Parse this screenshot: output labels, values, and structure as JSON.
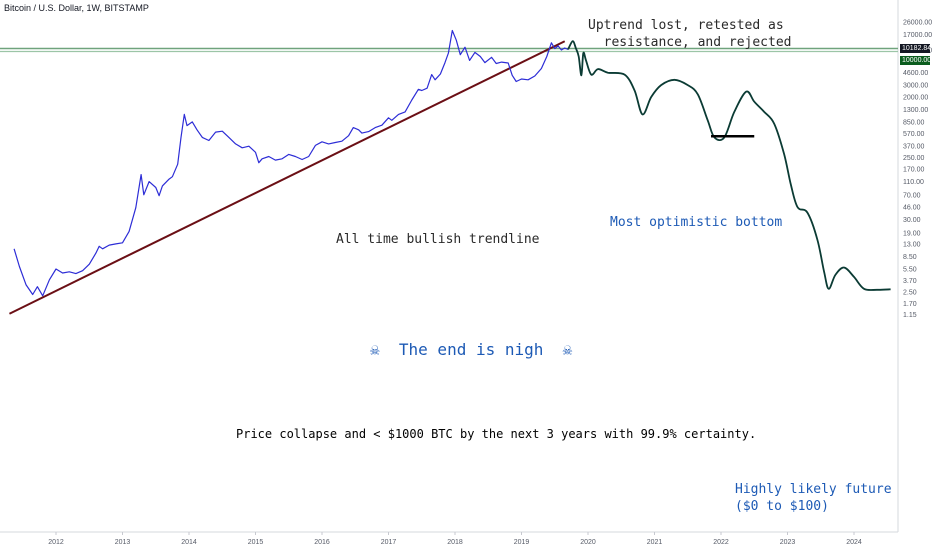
{
  "header": {
    "symbol": "Bitcoin / U.S. Dollar, 1W, BITSTAMP"
  },
  "price_tags": {
    "current": "10182.84",
    "level": "10000.00"
  },
  "annotations": {
    "uptrend_lost": "Uptrend lost, retested as\n  resistance, and rejected",
    "trendline": "All time bullish trendline",
    "optimistic_bottom": "Most optimistic bottom",
    "end_is_nigh": "☠  The end is nigh  ☠",
    "collapse": "Price collapse and < $1000 BTC by the next 3 years with 99.9% certainty.",
    "future": "Highly likely future\n($0 to $100)"
  },
  "colors": {
    "price_line": "#2d2dd6",
    "projection_line": "#0b3b34",
    "trendline": "#6b0f15",
    "resistance": "#6fa37c",
    "blue_text": "#1d5ab5",
    "dark_text": "#2a2a2a",
    "current_tag": "#131722",
    "level_tag": "#0b5d1e"
  },
  "chart_data": {
    "type": "line",
    "title": "Bitcoin / U.S. Dollar, 1W, BITSTAMP",
    "y_scale": "log",
    "ylim": [
      1,
      26000
    ],
    "xlim": [
      2011.3,
      2024.7
    ],
    "x_ticks": [
      "2012",
      "2013",
      "2014",
      "2015",
      "2016",
      "2017",
      "2018",
      "2019",
      "2020",
      "2021",
      "2022",
      "2023",
      "2024"
    ],
    "y_ticks": [
      "26000.00",
      "17000.00",
      "10000.00",
      "7000.00",
      "4600.00",
      "3000.00",
      "2000.00",
      "1300.00",
      "850.00",
      "570.00",
      "370.00",
      "250.00",
      "170.00",
      "110.00",
      "70.00",
      "46.00",
      "30.00",
      "19.00",
      "13.00",
      "8.50",
      "5.50",
      "3.70",
      "2.50",
      "1.70",
      "1.15"
    ],
    "series": [
      {
        "kind": "historical",
        "points": [
          [
            2011.37,
            11
          ],
          [
            2011.45,
            6
          ],
          [
            2011.55,
            3.2
          ],
          [
            2011.65,
            2.3
          ],
          [
            2011.72,
            3
          ],
          [
            2011.8,
            2.2
          ],
          [
            2011.9,
            3.8
          ],
          [
            2012.0,
            5.5
          ],
          [
            2012.1,
            4.8
          ],
          [
            2012.2,
            5
          ],
          [
            2012.3,
            4.7
          ],
          [
            2012.4,
            5.2
          ],
          [
            2012.5,
            6.5
          ],
          [
            2012.6,
            9.5
          ],
          [
            2012.65,
            12
          ],
          [
            2012.7,
            11
          ],
          [
            2012.8,
            12.5
          ],
          [
            2012.9,
            13
          ],
          [
            2013.0,
            13.5
          ],
          [
            2013.1,
            20
          ],
          [
            2013.2,
            45
          ],
          [
            2013.28,
            140
          ],
          [
            2013.32,
            70
          ],
          [
            2013.4,
            110
          ],
          [
            2013.5,
            90
          ],
          [
            2013.55,
            68
          ],
          [
            2013.6,
            95
          ],
          [
            2013.7,
            120
          ],
          [
            2013.75,
            130
          ],
          [
            2013.83,
            200
          ],
          [
            2013.88,
            500
          ],
          [
            2013.93,
            1100
          ],
          [
            2013.97,
            750
          ],
          [
            2014.05,
            850
          ],
          [
            2014.12,
            650
          ],
          [
            2014.2,
            500
          ],
          [
            2014.3,
            450
          ],
          [
            2014.4,
            600
          ],
          [
            2014.5,
            620
          ],
          [
            2014.6,
            500
          ],
          [
            2014.7,
            400
          ],
          [
            2014.8,
            350
          ],
          [
            2014.9,
            370
          ],
          [
            2015.0,
            300
          ],
          [
            2015.05,
            210
          ],
          [
            2015.1,
            240
          ],
          [
            2015.2,
            260
          ],
          [
            2015.3,
            230
          ],
          [
            2015.4,
            240
          ],
          [
            2015.5,
            280
          ],
          [
            2015.6,
            260
          ],
          [
            2015.7,
            235
          ],
          [
            2015.8,
            260
          ],
          [
            2015.9,
            380
          ],
          [
            2016.0,
            430
          ],
          [
            2016.1,
            400
          ],
          [
            2016.2,
            420
          ],
          [
            2016.3,
            440
          ],
          [
            2016.4,
            530
          ],
          [
            2016.47,
            700
          ],
          [
            2016.55,
            650
          ],
          [
            2016.6,
            580
          ],
          [
            2016.7,
            610
          ],
          [
            2016.8,
            700
          ],
          [
            2016.9,
            760
          ],
          [
            2017.0,
            980
          ],
          [
            2017.05,
            900
          ],
          [
            2017.15,
            1100
          ],
          [
            2017.25,
            1200
          ],
          [
            2017.35,
            1800
          ],
          [
            2017.45,
            2600
          ],
          [
            2017.5,
            2500
          ],
          [
            2017.58,
            2700
          ],
          [
            2017.65,
            4300
          ],
          [
            2017.7,
            3600
          ],
          [
            2017.78,
            4400
          ],
          [
            2017.85,
            6500
          ],
          [
            2017.9,
            9000
          ],
          [
            2017.96,
            19500
          ],
          [
            2018.02,
            14000
          ],
          [
            2018.08,
            8500
          ],
          [
            2018.15,
            11000
          ],
          [
            2018.22,
            7000
          ],
          [
            2018.3,
            9200
          ],
          [
            2018.38,
            8000
          ],
          [
            2018.45,
            6500
          ],
          [
            2018.55,
            7800
          ],
          [
            2018.62,
            6300
          ],
          [
            2018.7,
            6600
          ],
          [
            2018.8,
            6400
          ],
          [
            2018.86,
            4200
          ],
          [
            2018.92,
            3400
          ],
          [
            2019.0,
            3700
          ],
          [
            2019.1,
            3600
          ],
          [
            2019.2,
            4100
          ],
          [
            2019.3,
            5300
          ],
          [
            2019.38,
            8000
          ],
          [
            2019.45,
            12800
          ],
          [
            2019.5,
            10500
          ],
          [
            2019.55,
            11500
          ],
          [
            2019.6,
            10000
          ],
          [
            2019.65,
            10700
          ],
          [
            2019.7,
            10182
          ]
        ]
      },
      {
        "kind": "projection",
        "points": [
          [
            2019.7,
            10182
          ],
          [
            2019.77,
            13500
          ],
          [
            2019.82,
            10500
          ],
          [
            2019.86,
            8000
          ],
          [
            2019.9,
            4200
          ],
          [
            2019.93,
            9000
          ],
          [
            2019.97,
            7000
          ],
          [
            2020.05,
            4300
          ],
          [
            2020.15,
            5200
          ],
          [
            2020.3,
            4600
          ],
          [
            2020.55,
            4300
          ],
          [
            2020.7,
            2500
          ],
          [
            2020.82,
            1100
          ],
          [
            2020.95,
            2000
          ],
          [
            2021.1,
            3000
          ],
          [
            2021.3,
            3600
          ],
          [
            2021.5,
            3000
          ],
          [
            2021.65,
            2200
          ],
          [
            2021.8,
            900
          ],
          [
            2021.9,
            500
          ],
          [
            2022.05,
            500
          ],
          [
            2022.2,
            1200
          ],
          [
            2022.38,
            2400
          ],
          [
            2022.5,
            1700
          ],
          [
            2022.65,
            1200
          ],
          [
            2022.8,
            800
          ],
          [
            2022.95,
            280
          ],
          [
            2023.05,
            100
          ],
          [
            2023.15,
            46
          ],
          [
            2023.3,
            38
          ],
          [
            2023.45,
            15
          ],
          [
            2023.55,
            5
          ],
          [
            2023.62,
            2.8
          ],
          [
            2023.72,
            4.5
          ],
          [
            2023.85,
            5.8
          ],
          [
            2024.0,
            4.2
          ],
          [
            2024.15,
            2.8
          ],
          [
            2024.35,
            2.7
          ],
          [
            2024.55,
            2.75
          ]
        ]
      },
      {
        "kind": "trendline",
        "points": [
          [
            2011.3,
            1.19
          ],
          [
            2019.65,
            13500
          ]
        ]
      },
      {
        "kind": "resistance",
        "points": [
          [
            2011.3,
            10000
          ],
          [
            2024.7,
            10000
          ]
        ]
      },
      {
        "kind": "bottom_marker",
        "points": [
          [
            2021.85,
            520
          ],
          [
            2022.5,
            520
          ]
        ]
      }
    ]
  }
}
